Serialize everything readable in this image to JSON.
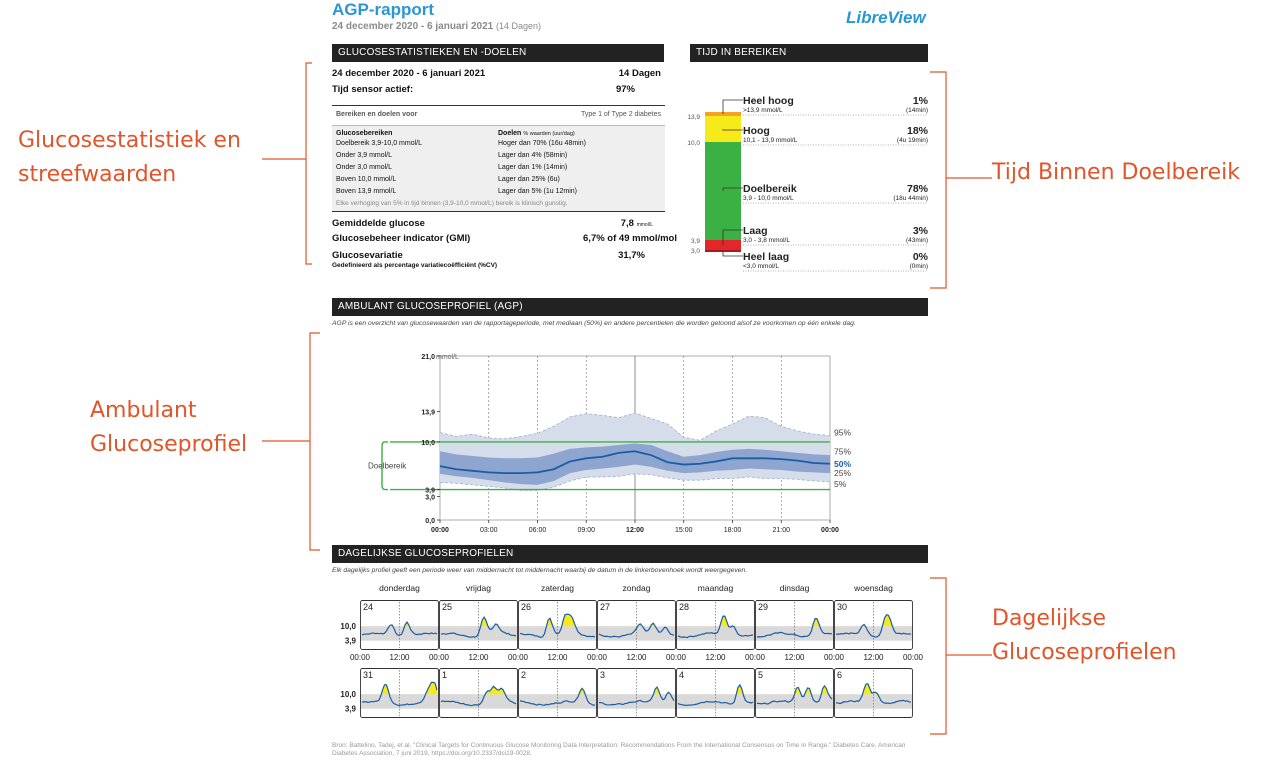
{
  "header": {
    "title": "AGP-rapport",
    "date_range": "24 december 2020 - 6 januari 2021",
    "days": "(14 Dagen)",
    "brand": "LibreView"
  },
  "annotations": {
    "stats": [
      "Glucosestatistiek en",
      "streefwaarden"
    ],
    "tir": "Tijd Binnen Doelbereik",
    "agp": [
      "Ambulant",
      "Glucoseprofiel"
    ],
    "daily": [
      "Dagelijkse",
      "Glucoseprofielen"
    ]
  },
  "stats": {
    "header": "GLUCOSESTATISTIEKEN EN -DOELEN",
    "period": "24 december 2020 - 6 januari 2021",
    "period_days": "14 Dagen",
    "sensor_label": "Tijd sensor actief:",
    "sensor_value": "97%",
    "ranges_label": "Bereiken en doelen voor",
    "ranges_type": "Type 1 of Type 2 diabetes",
    "col_ranges": "Glucosebereiken",
    "col_goals": "Doelen",
    "col_goals_sub": "% waarden (uur/dag)",
    "rows": [
      {
        "range": "Doelbereik 3,9-10,0 mmol/L",
        "goal": "Hoger dan 70% (16u 48min)"
      },
      {
        "range": "Onder 3,9 mmol/L",
        "goal": "Lager dan 4% (58min)"
      },
      {
        "range": "Onder 3,0 mmol/L",
        "goal": "Lager dan 1% (14min)"
      },
      {
        "range": "Boven 10,0 mmol/L",
        "goal": "Lager dan 25% (6u)"
      },
      {
        "range": "Boven 13,9 mmol/L",
        "goal": "Lager dan 5% (1u 12min)"
      }
    ],
    "note": "Elke verhoging van 5% in tijd binnen (3,9-10,0 mmol/L) bereik is klinisch gunstig.",
    "avg_label": "Gemiddelde glucose",
    "avg_value": "7,8",
    "avg_unit": "mmol/L",
    "gmi_label": "Glucosebeheer indicator (GMI)",
    "gmi_value": "6,7% of 49 mmol/mol",
    "cv_label": "Glucosevariatie",
    "cv_value": "31,7%",
    "cv_sub": "Gedefinieerd als percentage variatiecoëfficiënt (%CV)"
  },
  "tir": {
    "header": "TIJD IN BEREIKEN",
    "levels": [
      {
        "label": "Heel hoog",
        "sub": ">13,9 mmol/L",
        "pct": "1%",
        "time": "(14min)",
        "color": "#f3a221",
        "value": 1
      },
      {
        "label": "Hoog",
        "sub": "10,1 - 13,9 mmol/L",
        "pct": "18%",
        "time": "(4u 19min)",
        "color": "#f6ea1b",
        "value": 18
      },
      {
        "label": "Doelbereik",
        "sub": "3,9 - 10,0 mmol/L",
        "pct": "78%",
        "time": "(18u 44min)",
        "color": "#3bb143",
        "value": 78
      },
      {
        "label": "Laag",
        "sub": "3,0 - 3,8 mmol/L",
        "pct": "3%",
        "time": "(43min)",
        "color": "#e3262a",
        "value": 3
      },
      {
        "label": "Heel laag",
        "sub": "<3,0 mmol/L",
        "pct": "0%",
        "time": "(0min)",
        "color": "#a21d22",
        "value": 0
      }
    ],
    "ticks": [
      "13,9",
      "10,0",
      "3,9",
      "3,0"
    ]
  },
  "agp": {
    "header": "AMBULANT GLUCOSEPROFIEL (AGP)",
    "description": "AGP is een overzicht van glucosewaarden van de rapportageperiode, met mediaan (50%) en andere percentielen die worden getoond alsof ze voorkomen op één enkele dag.",
    "ymax_label": "21,0",
    "ymax_unit": "mmol/L",
    "target_label": "Doelbereik",
    "color_median": "#1a5da6",
    "color_iqr": "#8ea5d0",
    "color_outer": "#d5dcea",
    "color_target": "#3bb143"
  },
  "chart_data": {
    "type": "area",
    "x": [
      "00:00",
      "01:00",
      "02:00",
      "03:00",
      "04:00",
      "05:00",
      "06:00",
      "07:00",
      "08:00",
      "09:00",
      "10:00",
      "11:00",
      "12:00",
      "13:00",
      "14:00",
      "15:00",
      "16:00",
      "17:00",
      "18:00",
      "19:00",
      "20:00",
      "21:00",
      "22:00",
      "23:00",
      "24:00"
    ],
    "series": [
      {
        "name": "95%",
        "values": [
          11.2,
          10.7,
          11.0,
          10.5,
          10.4,
          10.7,
          11.1,
          12.0,
          13.2,
          13.6,
          13.4,
          13.1,
          13.7,
          13.0,
          12.3,
          10.6,
          10.2,
          11.4,
          12.3,
          13.3,
          13.1,
          12.0,
          11.4,
          11.0,
          10.8
        ]
      },
      {
        "name": "75%",
        "values": [
          8.8,
          8.4,
          8.2,
          8.0,
          7.9,
          7.9,
          8.0,
          8.5,
          9.1,
          9.3,
          9.4,
          9.6,
          9.8,
          9.6,
          8.8,
          8.1,
          8.3,
          8.7,
          9.0,
          9.1,
          9.0,
          8.8,
          8.6,
          8.4,
          8.3
        ]
      },
      {
        "name": "50%",
        "values": [
          6.9,
          6.5,
          6.3,
          6.1,
          6.0,
          6.0,
          6.1,
          6.5,
          7.5,
          7.9,
          8.1,
          8.6,
          8.8,
          8.3,
          7.4,
          7.1,
          7.2,
          7.5,
          7.9,
          7.9,
          7.9,
          7.8,
          7.6,
          7.3,
          7.2
        ]
      },
      {
        "name": "25%",
        "values": [
          5.9,
          5.6,
          5.4,
          5.1,
          4.8,
          4.6,
          4.5,
          5.0,
          6.0,
          6.4,
          6.6,
          6.8,
          7.1,
          6.8,
          6.3,
          6.0,
          6.1,
          6.3,
          6.4,
          6.6,
          6.5,
          6.4,
          6.2,
          6.1,
          6.0
        ]
      },
      {
        "name": "5%",
        "values": [
          4.8,
          4.7,
          4.5,
          4.3,
          4.1,
          3.8,
          3.8,
          4.2,
          5.0,
          5.5,
          5.5,
          5.6,
          5.9,
          5.8,
          5.4,
          5.1,
          5.1,
          5.3,
          5.3,
          5.5,
          5.3,
          5.3,
          5.2,
          5.0,
          4.9
        ]
      }
    ],
    "x_ticks": [
      "00:00",
      "03:00",
      "06:00",
      "09:00",
      "12:00",
      "15:00",
      "18:00",
      "21:00",
      "00:00"
    ],
    "y_ticks": [
      "21,0",
      "13,9",
      "10,0",
      "3,9",
      "3,0",
      "0,0"
    ],
    "ylim": [
      0,
      21
    ]
  },
  "daily": {
    "header": "DAGELIJKSE GLUCOSEPROFIELEN",
    "description": "Elk dagelijks profiel geeft een periode weer van middernacht tot middernacht waarbij de datum in de linkerbovenhoek wordt weergegeven.",
    "weekdays": [
      "donderdag",
      "vrijdag",
      "zaterdag",
      "zondag",
      "maandag",
      "dinsdag",
      "woensdag"
    ],
    "y_labels": [
      "10,0",
      "3,9"
    ],
    "x_labels": [
      "00:00",
      "12:00",
      "00:00",
      "12:00",
      "00:00",
      "12:00",
      "00:00",
      "12:00",
      "00:00",
      "12:00",
      "00:00",
      "12:00",
      "00:00",
      "12:00",
      "00:00"
    ],
    "week1": [
      "24",
      "25",
      "26",
      "27",
      "28",
      "29",
      "30"
    ],
    "week2": [
      "31",
      "1",
      "2",
      "3",
      "4",
      "5",
      "6"
    ]
  },
  "footer": {
    "line1": "Bron: Battelino, Tadej, et al. \"Clinical Targets for Continuous Glucose Monitoring Data Interpretation: Recommendations From the International Consensus on Time in Range.\" Diabetes Care, American",
    "line2": "Diabetes Association, 7 juni 2019, https://doi.org/10.2337/dci19-0028."
  }
}
